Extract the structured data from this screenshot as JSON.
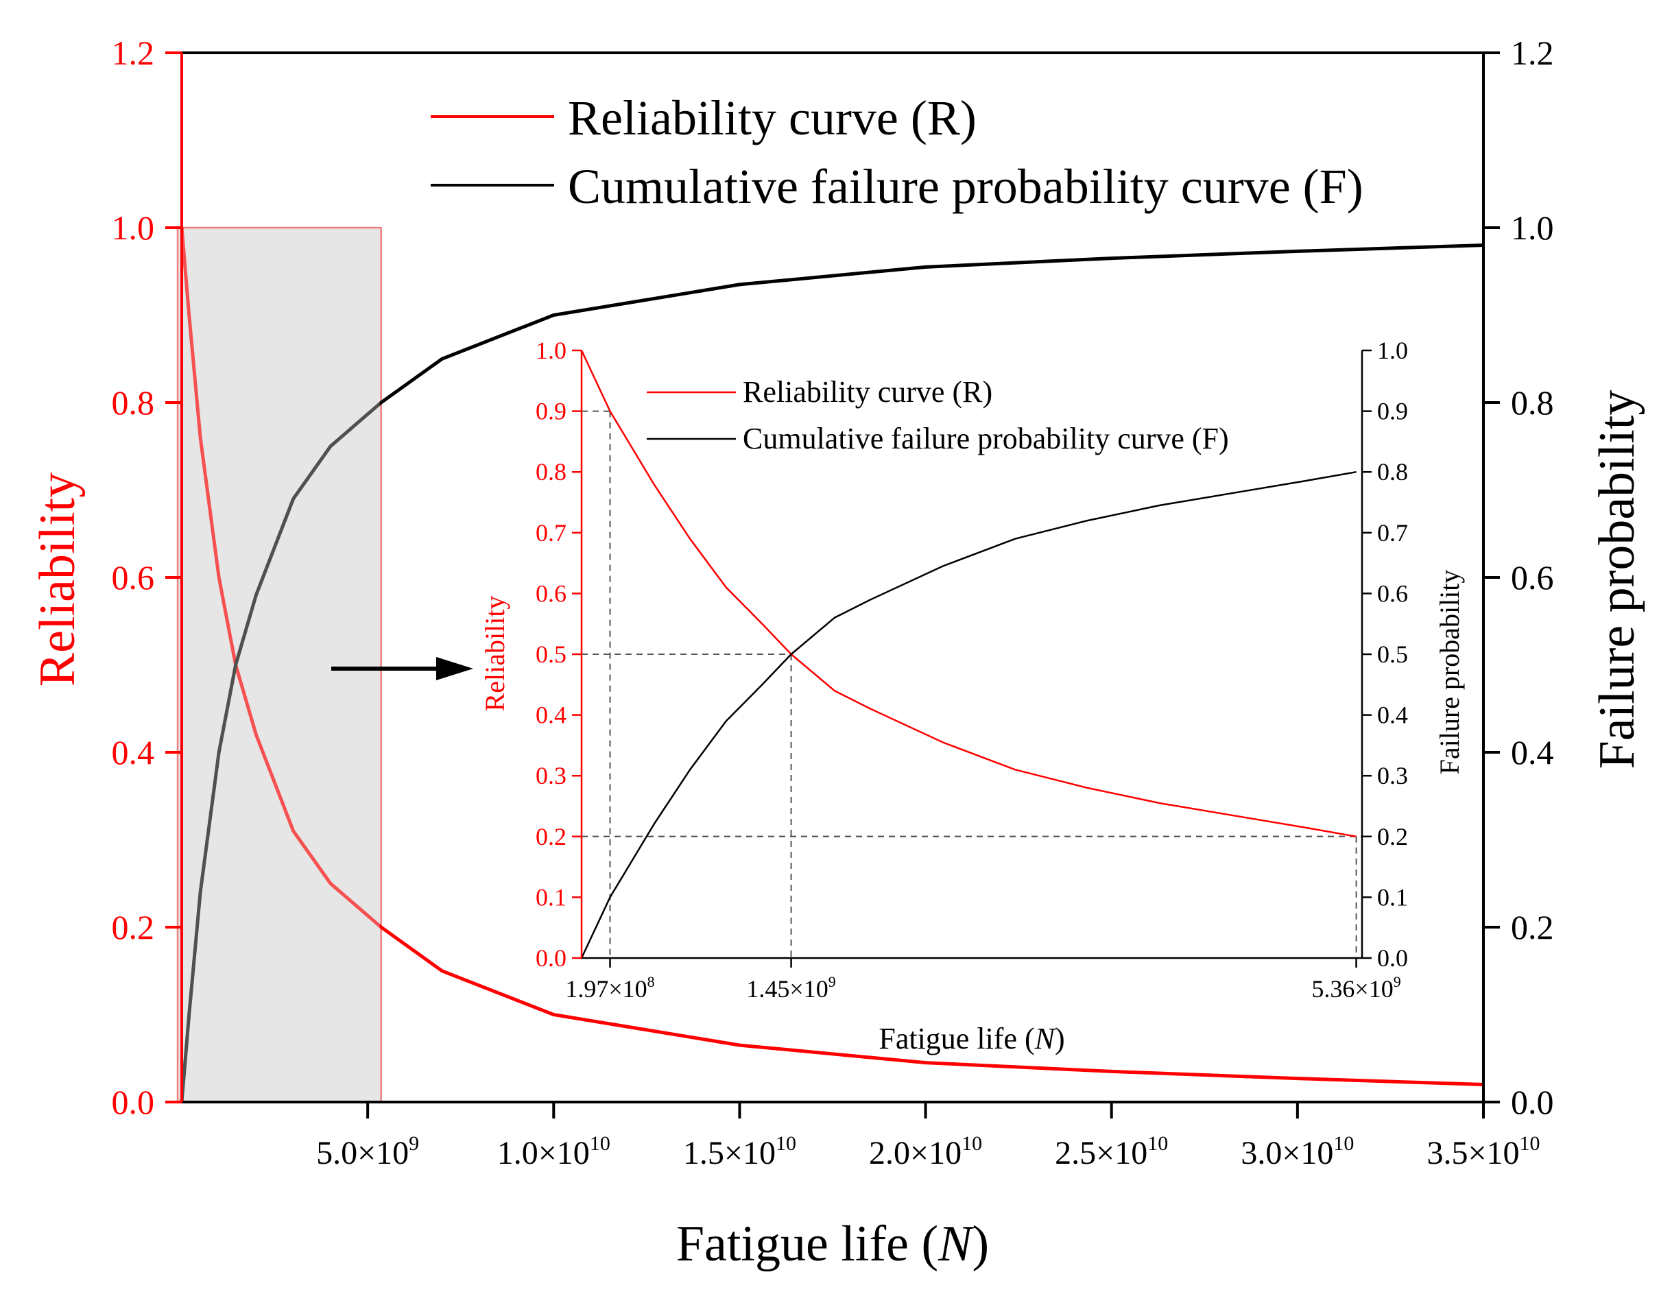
{
  "chart_data": [
    {
      "type": "line",
      "role": "main",
      "xlabel_prefix": "Fatigue life (",
      "xlabel_var": "N",
      "xlabel_suffix": ")",
      "ylabel_left": "Reliability",
      "ylabel_right": "Failure probability",
      "xlim": [
        0,
        35000000000
      ],
      "ylim_left": [
        0,
        1.2
      ],
      "ylim_right": [
        0,
        1.2
      ],
      "x_ticks": [
        {
          "value": 5000000000,
          "mant": "5.0×10",
          "exp": "9"
        },
        {
          "value": 10000000000,
          "mant": "1.0×10",
          "exp": "10"
        },
        {
          "value": 15000000000,
          "mant": "1.5×10",
          "exp": "10"
        },
        {
          "value": 20000000000,
          "mant": "2.0×10",
          "exp": "10"
        },
        {
          "value": 25000000000,
          "mant": "2.5×10",
          "exp": "10"
        },
        {
          "value": 30000000000,
          "mant": "3.0×10",
          "exp": "10"
        },
        {
          "value": 35000000000,
          "mant": "3.5×10",
          "exp": "10"
        }
      ],
      "y_ticks_left": [
        "0.0",
        "0.2",
        "0.4",
        "0.6",
        "0.8",
        "1.0",
        "1.2"
      ],
      "y_ticks_right": [
        "0.0",
        "0.2",
        "0.4",
        "0.6",
        "0.8",
        "1.0",
        "1.2"
      ],
      "legend": [
        "Reliability curve (R)",
        "Cumulative failure probability curve (F)"
      ],
      "legend_position": "top-center",
      "highlight_range_x": [
        0,
        5360000000
      ],
      "highlight_range_y": [
        0,
        1.0
      ],
      "series": [
        {
          "name": "Reliability curve (R)",
          "color": "#ff0000",
          "x": [
            0,
            197000000,
            500000000,
            1000000000,
            1450000000,
            2000000000,
            3000000000,
            4000000000,
            5360000000,
            7000000000,
            10000000000,
            15000000000,
            20000000000,
            25000000000,
            30000000000,
            35000000000
          ],
          "y": [
            1.0,
            0.9,
            0.76,
            0.6,
            0.5,
            0.42,
            0.31,
            0.25,
            0.2,
            0.15,
            0.1,
            0.065,
            0.045,
            0.035,
            0.027,
            0.02
          ]
        },
        {
          "name": "Cumulative failure probability curve (F)",
          "color": "#000000",
          "x": [
            0,
            197000000,
            500000000,
            1000000000,
            1450000000,
            2000000000,
            3000000000,
            4000000000,
            5360000000,
            7000000000,
            10000000000,
            15000000000,
            20000000000,
            25000000000,
            30000000000,
            35000000000
          ],
          "y": [
            0.0,
            0.1,
            0.24,
            0.4,
            0.5,
            0.58,
            0.69,
            0.75,
            0.8,
            0.85,
            0.9,
            0.935,
            0.955,
            0.965,
            0.973,
            0.98
          ]
        }
      ]
    },
    {
      "type": "line",
      "role": "inset",
      "xlabel_prefix": "Fatigue life (",
      "xlabel_var": "N",
      "xlabel_suffix": ")",
      "ylabel_left": "Reliability",
      "ylabel_right": "Failure probability",
      "xlim": [
        0,
        5400000000
      ],
      "ylim_left": [
        0,
        1.0
      ],
      "ylim_right": [
        0,
        1.0
      ],
      "x_ticks": [
        {
          "value": 197000000,
          "mant": "1.97×10",
          "exp": "8"
        },
        {
          "value": 1450000000,
          "mant": "1.45×10",
          "exp": "9"
        },
        {
          "value": 5360000000,
          "mant": "5.36×10",
          "exp": "9"
        }
      ],
      "y_ticks_left": [
        "0.0",
        "0.1",
        "0.2",
        "0.3",
        "0.4",
        "0.5",
        "0.6",
        "0.7",
        "0.8",
        "0.9",
        "1.0"
      ],
      "y_ticks_right": [
        "0.0",
        "0.1",
        "0.2",
        "0.3",
        "0.4",
        "0.5",
        "0.6",
        "0.7",
        "0.8",
        "0.9",
        "1.0"
      ],
      "legend": [
        "Reliability curve (R)",
        "Cumulative failure probability curve (F)"
      ],
      "legend_position": "top-left",
      "reference_points": [
        {
          "x": 197000000,
          "r": 0.9
        },
        {
          "x": 1450000000,
          "r": 0.5
        },
        {
          "x": 5360000000,
          "r": 0.2
        }
      ],
      "series": [
        {
          "name": "Reliability curve (R)",
          "color": "#ff0000",
          "x": [
            0,
            197000000,
            500000000,
            750000000,
            1000000000,
            1250000000,
            1450000000,
            1750000000,
            2000000000,
            2500000000,
            3000000000,
            3500000000,
            4000000000,
            4500000000,
            5000000000,
            5360000000
          ],
          "y": [
            1.0,
            0.9,
            0.78,
            0.69,
            0.61,
            0.55,
            0.5,
            0.44,
            0.41,
            0.355,
            0.31,
            0.28,
            0.255,
            0.235,
            0.215,
            0.2
          ]
        },
        {
          "name": "Cumulative failure probability curve (F)",
          "color": "#000000",
          "x": [
            0,
            197000000,
            500000000,
            750000000,
            1000000000,
            1250000000,
            1450000000,
            1750000000,
            2000000000,
            2500000000,
            3000000000,
            3500000000,
            4000000000,
            4500000000,
            5000000000,
            5360000000
          ],
          "y": [
            0.0,
            0.1,
            0.22,
            0.31,
            0.39,
            0.45,
            0.5,
            0.56,
            0.59,
            0.645,
            0.69,
            0.72,
            0.745,
            0.765,
            0.785,
            0.8
          ]
        }
      ]
    }
  ]
}
